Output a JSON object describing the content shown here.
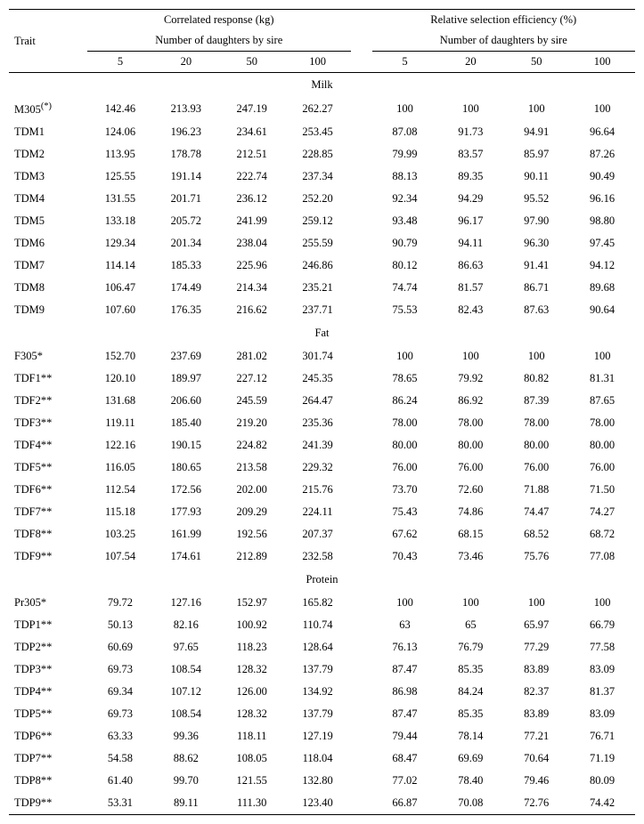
{
  "headers": {
    "trait": "Trait",
    "corr": "Correlated response (kg)",
    "eff": "Relative selection efficiency (%)",
    "sub": "Number of daughters by sire",
    "cols": [
      "5",
      "20",
      "50",
      "100"
    ]
  },
  "sections": [
    {
      "title": "Milk",
      "rows": [
        {
          "t": "M305",
          "sup": "(*)",
          "c": [
            "142.46",
            "213.93",
            "247.19",
            "262.27"
          ],
          "e": [
            "100",
            "100",
            "100",
            "100"
          ]
        },
        {
          "t": "TDM1",
          "c": [
            "124.06",
            "196.23",
            "234.61",
            "253.45"
          ],
          "e": [
            "87.08",
            "91.73",
            "94.91",
            "96.64"
          ]
        },
        {
          "t": "TDM2",
          "c": [
            "113.95",
            "178.78",
            "212.51",
            "228.85"
          ],
          "e": [
            "79.99",
            "83.57",
            "85.97",
            "87.26"
          ]
        },
        {
          "t": "TDM3",
          "c": [
            "125.55",
            "191.14",
            "222.74",
            "237.34"
          ],
          "e": [
            "88.13",
            "89.35",
            "90.11",
            "90.49"
          ]
        },
        {
          "t": "TDM4",
          "c": [
            "131.55",
            "201.71",
            "236.12",
            "252.20"
          ],
          "e": [
            "92.34",
            "94.29",
            "95.52",
            "96.16"
          ]
        },
        {
          "t": "TDM5",
          "c": [
            "133.18",
            "205.72",
            "241.99",
            "259.12"
          ],
          "e": [
            "93.48",
            "96.17",
            "97.90",
            "98.80"
          ]
        },
        {
          "t": "TDM6",
          "c": [
            "129.34",
            "201.34",
            "238.04",
            "255.59"
          ],
          "e": [
            "90.79",
            "94.11",
            "96.30",
            "97.45"
          ]
        },
        {
          "t": "TDM7",
          "c": [
            "114.14",
            "185.33",
            "225.96",
            "246.86"
          ],
          "e": [
            "80.12",
            "86.63",
            "91.41",
            "94.12"
          ]
        },
        {
          "t": "TDM8",
          "c": [
            "106.47",
            "174.49",
            "214.34",
            "235.21"
          ],
          "e": [
            "74.74",
            "81.57",
            "86.71",
            "89.68"
          ]
        },
        {
          "t": "TDM9",
          "c": [
            "107.60",
            "176.35",
            "216.62",
            "237.71"
          ],
          "e": [
            "75.53",
            "82.43",
            "87.63",
            "90.64"
          ]
        }
      ]
    },
    {
      "title": "Fat",
      "rows": [
        {
          "t": "F305*",
          "c": [
            "152.70",
            "237.69",
            "281.02",
            "301.74"
          ],
          "e": [
            "100",
            "100",
            "100",
            "100"
          ]
        },
        {
          "t": "TDF1**",
          "c": [
            "120.10",
            "189.97",
            "227.12",
            "245.35"
          ],
          "e": [
            "78.65",
            "79.92",
            "80.82",
            "81.31"
          ]
        },
        {
          "t": "TDF2**",
          "c": [
            "131.68",
            "206.60",
            "245.59",
            "264.47"
          ],
          "e": [
            "86.24",
            "86.92",
            "87.39",
            "87.65"
          ]
        },
        {
          "t": "TDF3**",
          "c": [
            "119.11",
            "185.40",
            "219.20",
            "235.36"
          ],
          "e": [
            "78.00",
            "78.00",
            "78.00",
            "78.00"
          ]
        },
        {
          "t": "TDF4**",
          "c": [
            "122.16",
            "190.15",
            "224.82",
            "241.39"
          ],
          "e": [
            "80.00",
            "80.00",
            "80.00",
            "80.00"
          ]
        },
        {
          "t": "TDF5**",
          "c": [
            "116.05",
            "180.65",
            "213.58",
            "229.32"
          ],
          "e": [
            "76.00",
            "76.00",
            "76.00",
            "76.00"
          ]
        },
        {
          "t": "TDF6**",
          "c": [
            "112.54",
            "172.56",
            "202.00",
            "215.76"
          ],
          "e": [
            "73.70",
            "72.60",
            "71.88",
            "71.50"
          ]
        },
        {
          "t": "TDF7**",
          "c": [
            "115.18",
            "177.93",
            "209.29",
            "224.11"
          ],
          "e": [
            "75.43",
            "74.86",
            "74.47",
            "74.27"
          ]
        },
        {
          "t": "TDF8**",
          "c": [
            "103.25",
            "161.99",
            "192.56",
            "207.37"
          ],
          "e": [
            "67.62",
            "68.15",
            "68.52",
            "68.72"
          ]
        },
        {
          "t": "TDF9**",
          "c": [
            "107.54",
            "174.61",
            "212.89",
            "232.58"
          ],
          "e": [
            "70.43",
            "73.46",
            "75.76",
            "77.08"
          ]
        }
      ]
    },
    {
      "title": "Protein",
      "rows": [
        {
          "t": "Pr305*",
          "c": [
            "79.72",
            "127.16",
            "152.97",
            "165.82"
          ],
          "e": [
            "100",
            "100",
            "100",
            "100"
          ]
        },
        {
          "t": "TDP1**",
          "c": [
            "50.13",
            "82.16",
            "100.92",
            "110.74"
          ],
          "e": [
            "63",
            "65",
            "65.97",
            "66.79"
          ]
        },
        {
          "t": "TDP2**",
          "c": [
            "60.69",
            "97.65",
            "118.23",
            "128.64"
          ],
          "e": [
            "76.13",
            "76.79",
            "77.29",
            "77.58"
          ]
        },
        {
          "t": "TDP3**",
          "c": [
            "69.73",
            "108.54",
            "128.32",
            "137.79"
          ],
          "e": [
            "87.47",
            "85.35",
            "83.89",
            "83.09"
          ]
        },
        {
          "t": "TDP4**",
          "c": [
            "69.34",
            "107.12",
            "126.00",
            "134.92"
          ],
          "e": [
            "86.98",
            "84.24",
            "82.37",
            "81.37"
          ]
        },
        {
          "t": "TDP5**",
          "c": [
            "69.73",
            "108.54",
            "128.32",
            "137.79"
          ],
          "e": [
            "87.47",
            "85.35",
            "83.89",
            "83.09"
          ]
        },
        {
          "t": "TDP6**",
          "c": [
            "63.33",
            "99.36",
            "118.11",
            "127.19"
          ],
          "e": [
            "79.44",
            "78.14",
            "77.21",
            "76.71"
          ]
        },
        {
          "t": "TDP7**",
          "c": [
            "54.58",
            "88.62",
            "108.05",
            "118.04"
          ],
          "e": [
            "68.47",
            "69.69",
            "70.64",
            "71.19"
          ]
        },
        {
          "t": "TDP8**",
          "c": [
            "61.40",
            "99.70",
            "121.55",
            "132.80"
          ],
          "e": [
            "77.02",
            "78.40",
            "79.46",
            "80.09"
          ]
        },
        {
          "t": "TDP9**",
          "c": [
            "53.31",
            "89.11",
            "111.30",
            "123.40"
          ],
          "e": [
            "66.87",
            "70.08",
            "72.76",
            "74.42"
          ]
        }
      ]
    }
  ],
  "style": {
    "background": "#ffffff",
    "text_color": "#000000",
    "font_family": "Times New Roman",
    "base_fontsize": 12.5,
    "border_color": "#000000"
  }
}
